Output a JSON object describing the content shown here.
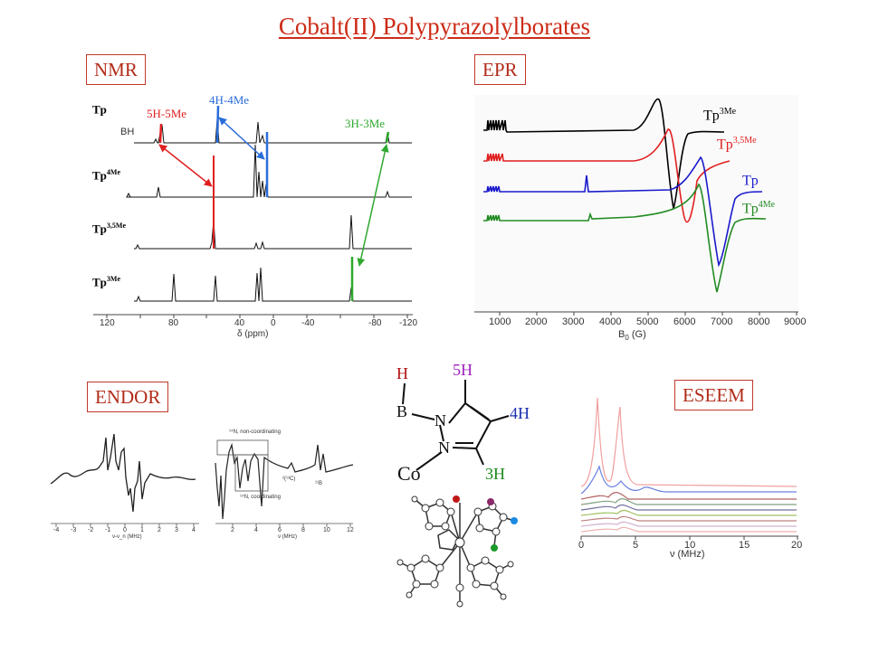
{
  "title": "Cobalt(II) Polypyrazolylborates",
  "sections": {
    "nmr": "NMR",
    "epr": "EPR",
    "endor": "ENDOR",
    "eseem": "ESEEM"
  },
  "nmr": {
    "traces": [
      "Tp",
      "Tp",
      "Tp",
      "Tp"
    ],
    "trace_sup": [
      "",
      "4Me",
      "3,5Me",
      "3Me"
    ],
    "bh_label": "BH",
    "peak_labels": {
      "red": "5H-5Me",
      "blue": "4H-4Me",
      "green": "3H-3Me"
    },
    "xticks": [
      "120",
      "80",
      "40",
      "0",
      "-40",
      "-80",
      "-120"
    ],
    "xlabel": "δ (ppm)",
    "colors": {
      "red": "#e02020",
      "blue": "#2a6dd9",
      "green": "#2ea82e"
    }
  },
  "epr": {
    "traces": [
      {
        "base": "Tp",
        "sup": "3Me",
        "color": "#000000"
      },
      {
        "base": "Tp",
        "sup": "3,5Me",
        "color": "#e02020"
      },
      {
        "base": "Tp",
        "sup": "",
        "color": "#1a1acc"
      },
      {
        "base": "Tp",
        "sup": "4Me",
        "color": "#228b22"
      }
    ],
    "xticks": [
      "1000",
      "2000",
      "3000",
      "4000",
      "5000",
      "6000",
      "7000",
      "8000",
      "9000"
    ],
    "xlabel_main": "B",
    "xlabel_sub": "0",
    "xlabel_unit": "(G)"
  },
  "endor": {
    "left_xticks": [
      "-4",
      "-3",
      "-2",
      "-1",
      "0",
      "1",
      "2",
      "3",
      "4"
    ],
    "left_xlabel": "ν-ν_n (MHz)",
    "right_xticks": [
      "2",
      "4",
      "6",
      "8",
      "10",
      "12"
    ],
    "right_xlabel": "ν (MHz)",
    "ann_noncoord": "¹⁴N, non-coordinating",
    "ann_coord": "¹⁴N, coordinating",
    "ann_c13": "²(¹³C)",
    "ann_b11": "¹¹B"
  },
  "molecule": {
    "H": "H",
    "B": "B",
    "N1": "N",
    "N2": "N",
    "Co": "Co",
    "h5": "5H",
    "h4": "4H",
    "h3": "3H",
    "colors": {
      "h5": "#a020c0",
      "h4": "#1a2fb0",
      "h3": "#1a8a1a",
      "H": "#b01010"
    }
  },
  "eseem": {
    "xticks": [
      "0",
      "5",
      "10",
      "15",
      "20"
    ],
    "xlabel": "ν (MHz)"
  }
}
